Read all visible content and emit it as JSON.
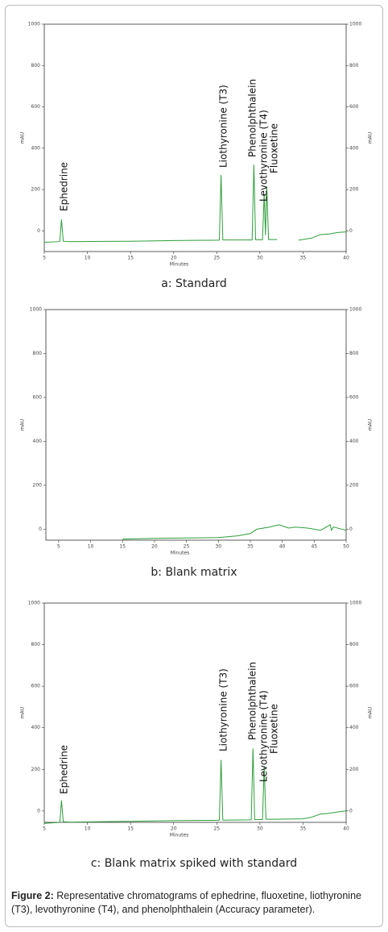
{
  "chart_data": [
    {
      "type": "line",
      "title": "a: Standard",
      "xlabel": "Minutes",
      "ylabel": "mAU",
      "y2label": "mAU",
      "xlim": [
        5,
        40
      ],
      "xticks": [
        5,
        10,
        15,
        20,
        25,
        30,
        35,
        40
      ],
      "ylim": [
        -100,
        1000
      ],
      "yticks": [
        0,
        200,
        400,
        600,
        800,
        1000
      ],
      "y2lim": [
        -100,
        1000
      ],
      "y2ticks": [
        0,
        200,
        400,
        600,
        800,
        1000
      ],
      "color": "#2e9e3a",
      "x": [
        5,
        6.8,
        7.0,
        7.2,
        8,
        15,
        20,
        25.3,
        25.5,
        25.7,
        29.1,
        29.3,
        29.5,
        30.3,
        30.5,
        30.65,
        30.8,
        31,
        32,
        33,
        34.5,
        36,
        37,
        38,
        39,
        40
      ],
      "values": [
        -55,
        -52,
        55,
        -50,
        -52,
        -50,
        -47,
        -45,
        270,
        -44,
        -44,
        320,
        -43,
        -43,
        180,
        -20,
        215,
        -42,
        -42,
        null,
        -45,
        -35,
        -18,
        -15,
        -8,
        -5
      ],
      "annotations": [
        "Ephedrine",
        "Liothyronine (T3)",
        "Phenolphthalein",
        "Levothyronine (T4)",
        "Fluoxetine"
      ]
    },
    {
      "type": "line",
      "title": "b: Blank matrix",
      "xlabel": "Minutes",
      "ylabel": "mAU",
      "y2label": "mAU",
      "xlim": [
        3,
        50
      ],
      "xticks": [
        5,
        10,
        15,
        20,
        25,
        30,
        35,
        40,
        45,
        50
      ],
      "ylim": [
        -50,
        1000
      ],
      "yticks": [
        0,
        200,
        400,
        600,
        800,
        1000
      ],
      "y2lim": [
        -50,
        1000
      ],
      "y2ticks": [
        0,
        200,
        400,
        600,
        800,
        1000
      ],
      "color": "#2e9e3a",
      "x": [
        15,
        20,
        25,
        30,
        33,
        35,
        36,
        38,
        39.5,
        41,
        42,
        44,
        46,
        47.5,
        47.7,
        48,
        50
      ],
      "values": [
        -45,
        -42,
        -40,
        -38,
        -30,
        -20,
        0,
        10,
        20,
        5,
        10,
        5,
        -5,
        20,
        -5,
        10,
        -5
      ]
    },
    {
      "type": "line",
      "title": "c: Blank matrix spiked with standard",
      "xlabel": "Minutes",
      "ylabel": "mAU",
      "y2label": "mAU",
      "xlim": [
        5,
        40
      ],
      "xticks": [
        5,
        10,
        15,
        20,
        25,
        30,
        35,
        40
      ],
      "ylim": [
        -55,
        1000
      ],
      "yticks": [
        0,
        200,
        400,
        600,
        800,
        1000
      ],
      "y2lim": [
        -55,
        1000
      ],
      "y2ticks": [
        0,
        200,
        400,
        600,
        800,
        1000
      ],
      "color": "#2e9e3a",
      "x": [
        5,
        6.8,
        7.0,
        7.2,
        8,
        15,
        20,
        25.3,
        25.5,
        25.7,
        29.0,
        29.2,
        29.4,
        30.3,
        30.5,
        30.7,
        32,
        35,
        36,
        37,
        38,
        39,
        40
      ],
      "values": [
        -60,
        -55,
        50,
        -52,
        -54,
        -50,
        -47,
        -45,
        245,
        -44,
        -43,
        300,
        -42,
        -42,
        215,
        -40,
        -40,
        -38,
        -30,
        -15,
        -12,
        -5,
        0
      ],
      "annotations": [
        "Ephedrine",
        "Liothyronine (T3)",
        "Phenolphthalein",
        "Levothyronine (T4)",
        "Fluoxetine"
      ]
    }
  ],
  "caption": {
    "label": "Figure 2:",
    "text": "Representative chromatograms of ephedrine, fluoxetine, liothyronine (T3), levothyronine (T4), and phenolphthalein (Accuracy parameter)."
  }
}
